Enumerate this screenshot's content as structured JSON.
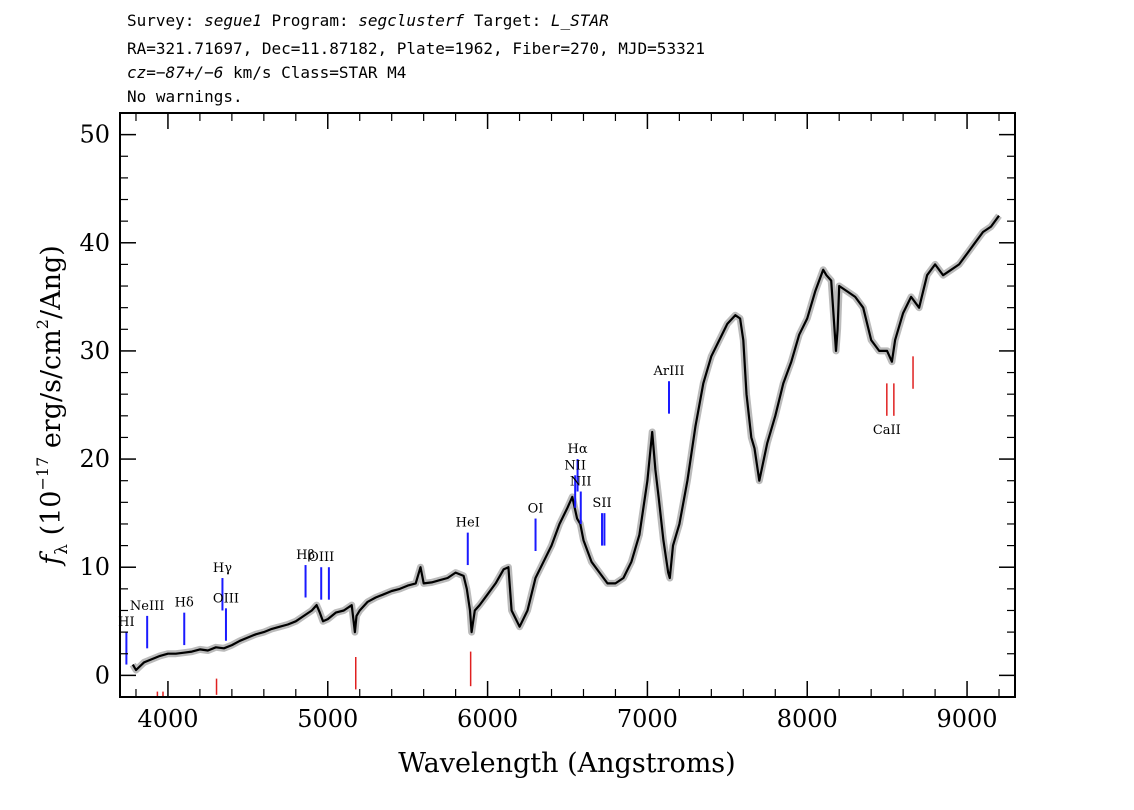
{
  "header": {
    "survey_label": "Survey:",
    "survey": "segue1",
    "program_label": "Program:",
    "program": "segclusterf",
    "target_label": "Target:",
    "target": "L_STAR",
    "line2": "RA=321.71697, Dec=11.87182, Plate=1962, Fiber=270, MJD=53321",
    "cz_var": "cz",
    "cz_value": "=−87+/−6",
    "cz_rest": " km/s Class=STAR M4",
    "line4": "No warnings."
  },
  "chart_data": {
    "type": "line",
    "title": "",
    "xlabel": "Wavelength (Angstroms)",
    "ylabel_symbol": "f",
    "ylabel_sub": "λ",
    "ylabel_text": " (10",
    "ylabel_exp": "−17",
    "ylabel_units": " erg/s/cm",
    "ylabel_units_exp": "2",
    "ylabel_tail": "/Ang)",
    "xlim": [
      3700,
      9300
    ],
    "ylim": [
      -2,
      52
    ],
    "xticks": [
      4000,
      5000,
      6000,
      7000,
      8000,
      9000
    ],
    "yticks": [
      0,
      10,
      20,
      30,
      40,
      50
    ],
    "xtick_labels": [
      "4000",
      "5000",
      "6000",
      "7000",
      "8000",
      "9000"
    ],
    "ytick_labels": [
      "0",
      "10",
      "20",
      "30",
      "40",
      "50"
    ],
    "series": [
      {
        "color": "#000000",
        "error_color": "#bbbbbb",
        "x": [
          3780,
          3800,
          3850,
          3900,
          3950,
          4000,
          4050,
          4100,
          4150,
          4200,
          4250,
          4300,
          4350,
          4400,
          4450,
          4500,
          4550,
          4600,
          4650,
          4700,
          4750,
          4800,
          4850,
          4900,
          4930,
          4950,
          4970,
          5000,
          5050,
          5100,
          5150,
          5170,
          5180,
          5200,
          5250,
          5300,
          5350,
          5400,
          5450,
          5500,
          5550,
          5580,
          5600,
          5650,
          5700,
          5750,
          5800,
          5850,
          5870,
          5890,
          5900,
          5920,
          5950,
          6000,
          6050,
          6100,
          6130,
          6150,
          6200,
          6250,
          6300,
          6350,
          6400,
          6450,
          6500,
          6530,
          6560,
          6580,
          6600,
          6650,
          6700,
          6750,
          6800,
          6850,
          6900,
          6950,
          7000,
          7030,
          7050,
          7070,
          7100,
          7130,
          7140,
          7160,
          7200,
          7250,
          7300,
          7350,
          7400,
          7450,
          7500,
          7550,
          7580,
          7600,
          7620,
          7650,
          7670,
          7700,
          7750,
          7800,
          7850,
          7900,
          7950,
          8000,
          8050,
          8100,
          8120,
          8150,
          8180,
          8190,
          8200,
          8250,
          8300,
          8350,
          8400,
          8450,
          8500,
          8530,
          8550,
          8600,
          8650,
          8700,
          8750,
          8800,
          8850,
          8900,
          8950,
          9000,
          9050,
          9100,
          9150,
          9200
        ],
        "y": [
          1.0,
          0.5,
          1.2,
          1.5,
          1.8,
          2.0,
          2.0,
          2.1,
          2.2,
          2.4,
          2.3,
          2.6,
          2.5,
          2.8,
          3.2,
          3.5,
          3.8,
          4.0,
          4.3,
          4.5,
          4.7,
          5.0,
          5.5,
          6.0,
          6.5,
          5.8,
          5.0,
          5.2,
          5.8,
          6.0,
          6.5,
          4.0,
          5.5,
          6.0,
          6.8,
          7.2,
          7.5,
          7.8,
          8.0,
          8.3,
          8.5,
          10.0,
          8.5,
          8.6,
          8.8,
          9.0,
          9.5,
          9.2,
          8.0,
          6.0,
          4.0,
          6.0,
          6.5,
          7.5,
          8.5,
          9.8,
          10.0,
          6.0,
          4.5,
          6.0,
          9.0,
          10.5,
          12.0,
          14.0,
          15.5,
          16.5,
          14.5,
          14.0,
          12.5,
          10.5,
          9.5,
          8.5,
          8.5,
          9.0,
          10.5,
          13.0,
          18.0,
          22.5,
          19.0,
          16.5,
          12.5,
          9.5,
          9.0,
          12.0,
          14.0,
          18.0,
          23.0,
          27.0,
          29.5,
          31.0,
          32.5,
          33.3,
          33.0,
          31.0,
          26.0,
          22.0,
          21.0,
          18.0,
          21.5,
          24.0,
          27.0,
          29.0,
          31.5,
          33.0,
          35.5,
          37.5,
          37.0,
          36.5,
          30.0,
          32.0,
          36.0,
          35.5,
          35.0,
          34.0,
          31.0,
          30.0,
          30.0,
          29.0,
          31.0,
          33.5,
          35.0,
          34.0,
          37.0,
          38.0,
          37.0,
          37.5,
          38.0,
          39.0,
          40.0,
          41.0,
          41.5,
          42.5
        ]
      }
    ],
    "lines_blue": [
      {
        "label": "HI",
        "wl": 3740,
        "y_low": 1.0,
        "y_high": 4.0
      },
      {
        "label": "NeIII",
        "wl": 3870,
        "y_low": 2.5,
        "y_high": 5.5
      },
      {
        "label": "Hδ",
        "wl": 4102,
        "y_low": 2.8,
        "y_high": 5.8
      },
      {
        "label": "Hγ",
        "wl": 4341,
        "y_low": 6.0,
        "y_high": 9.0
      },
      {
        "label": "OIII",
        "wl": 4363,
        "y_low": 3.2,
        "y_high": 6.2
      },
      {
        "label": "Hβ",
        "wl": 4861,
        "y_low": 7.2,
        "y_high": 10.2
      },
      {
        "label": "OIII",
        "wl": 4959,
        "y_low": 7.0,
        "y_high": 10.0
      },
      {
        "label": "",
        "wl": 5007,
        "y_low": 7.0,
        "y_high": 10.0
      },
      {
        "label": "HeI",
        "wl": 5876,
        "y_low": 10.2,
        "y_high": 13.2
      },
      {
        "label": "OI",
        "wl": 6300,
        "y_low": 11.5,
        "y_high": 14.5
      },
      {
        "label": "NII",
        "wl": 6548,
        "y_low": 15.5,
        "y_high": 18.5
      },
      {
        "label": "Hα",
        "wl": 6563,
        "y_low": 17.0,
        "y_high": 20.0
      },
      {
        "label": "NII",
        "wl": 6583,
        "y_low": 14.0,
        "y_high": 17.0
      },
      {
        "label": "SII",
        "wl": 6716,
        "y_low": 12.0,
        "y_high": 15.0
      },
      {
        "label": "",
        "wl": 6731,
        "y_low": 12.0,
        "y_high": 15.0
      },
      {
        "label": "ArIII",
        "wl": 7135,
        "y_low": 24.2,
        "y_high": 27.2
      }
    ],
    "lines_red": [
      {
        "label": "",
        "wl": 3934,
        "y_low": -2.0,
        "y_high": -1.5
      },
      {
        "label": "",
        "wl": 3969,
        "y_low": -2.0,
        "y_high": -1.5
      },
      {
        "label": "",
        "wl": 4304,
        "y_low": -1.8,
        "y_high": -0.3
      },
      {
        "label": "",
        "wl": 5175,
        "y_low": -1.3,
        "y_high": 1.7
      },
      {
        "label": "",
        "wl": 5894,
        "y_low": -1.0,
        "y_high": 2.2
      },
      {
        "label": "CaII",
        "wl": 8498,
        "y_low": 24.0,
        "y_high": 27.0
      },
      {
        "label": "",
        "wl": 8542,
        "y_low": 24.0,
        "y_high": 27.0
      },
      {
        "label": "",
        "wl": 8662,
        "y_low": 26.5,
        "y_high": 29.5
      }
    ]
  }
}
